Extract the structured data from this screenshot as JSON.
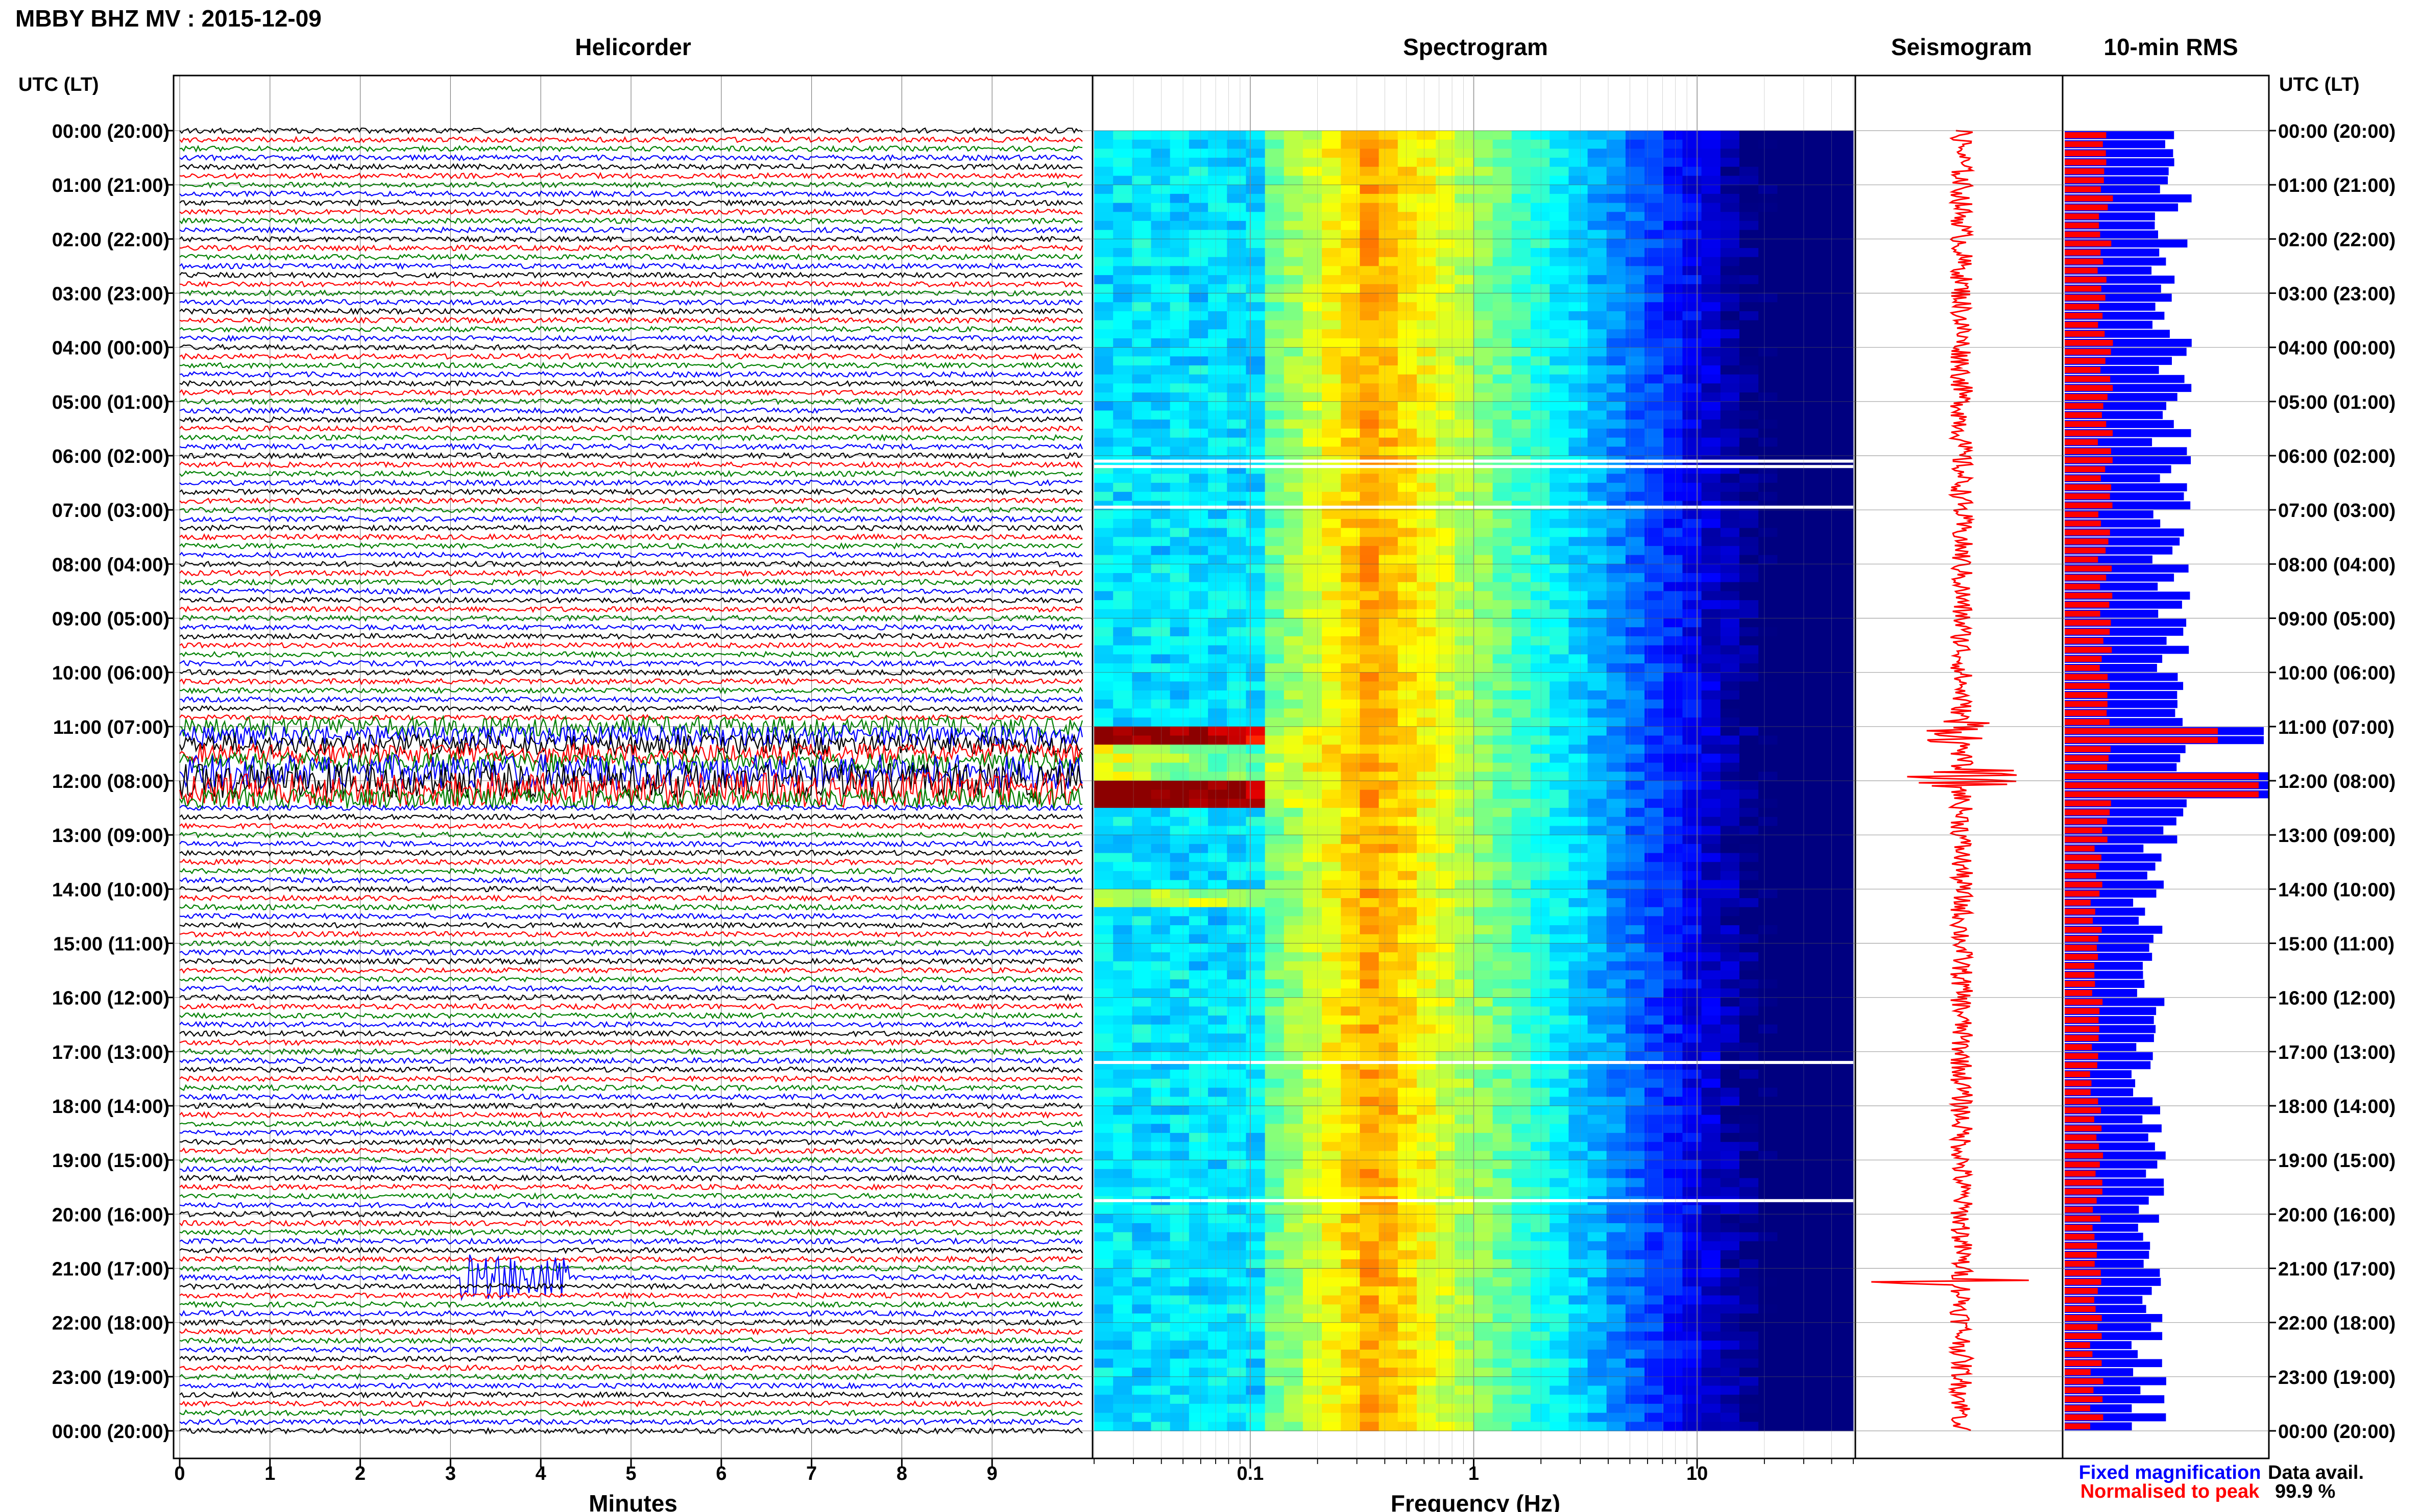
{
  "title": "MBBY BHZ MV : 2015-12-09",
  "panels": {
    "helicorder": "Helicorder",
    "spectrogram": "Spectrogram",
    "seismogram": "Seismogram",
    "rms": "10-min RMS"
  },
  "time_axis_label": "UTC (LT)",
  "time_labels": [
    "00:00 (20:00)",
    "01:00 (21:00)",
    "02:00 (22:00)",
    "03:00 (23:00)",
    "04:00 (00:00)",
    "05:00 (01:00)",
    "06:00 (02:00)",
    "07:00 (03:00)",
    "08:00 (04:00)",
    "09:00 (05:00)",
    "10:00 (06:00)",
    "11:00 (07:00)",
    "12:00 (08:00)",
    "13:00 (09:00)",
    "14:00 (10:00)",
    "15:00 (11:00)",
    "16:00 (12:00)",
    "17:00 (13:00)",
    "18:00 (14:00)",
    "19:00 (15:00)",
    "20:00 (16:00)",
    "21:00 (17:00)",
    "22:00 (18:00)",
    "23:00 (19:00)",
    "00:00 (20:00)"
  ],
  "xlabels": {
    "helicorder": "Minutes",
    "spectrogram": "Frequency (Hz)"
  },
  "minute_ticks": [
    "0",
    "1",
    "2",
    "3",
    "4",
    "5",
    "6",
    "7",
    "8",
    "9"
  ],
  "freq_ticks": [
    "0.1",
    "1",
    "10"
  ],
  "legend": {
    "fixed": "Fixed magnification",
    "normalised": "Normalised to peak"
  },
  "data_avail": {
    "label": "Data avail.",
    "value": "99.9 %"
  },
  "colors": {
    "fixed": "#0000ff",
    "normalised": "#ff0000",
    "trace_cycle": [
      "#000000",
      "#ff0000",
      "#008000",
      "#0000ff"
    ]
  },
  "chart_data": [
    {
      "type": "line",
      "title": "Helicorder",
      "xlabel": "Minutes",
      "xlim": [
        0,
        10
      ],
      "rows_per_hour": 6,
      "hours": 24,
      "events": [
        {
          "time_utc": "11:00-12:20",
          "note": "elevated amplitude"
        },
        {
          "time_utc": "21:10",
          "minute": 3.4
        }
      ]
    },
    {
      "type": "heatmap",
      "title": "Spectrogram",
      "xlabel": "Frequency (Hz)",
      "xscale": "log",
      "xlim": [
        0.02,
        50
      ]
    },
    {
      "type": "line",
      "title": "Seismogram"
    },
    {
      "type": "bar",
      "title": "10-min RMS",
      "series": [
        {
          "name": "Fixed magnification"
        },
        {
          "name": "Normalised to peak"
        }
      ]
    }
  ]
}
